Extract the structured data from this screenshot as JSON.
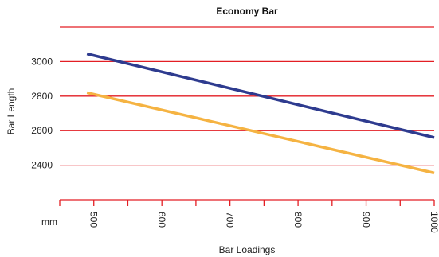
{
  "chart_data": {
    "type": "line",
    "title": "Economy Bar",
    "xlabel": "Bar Loadings",
    "ylabel": "Bar Length",
    "x_unit": "mm",
    "xlim": [
      450,
      1000
    ],
    "ylim": [
      2200,
      3200
    ],
    "x_ticks": [
      "500",
      "600",
      "700",
      "800",
      "900",
      "1000"
    ],
    "y_ticks": [
      "2400",
      "2600",
      "2800",
      "3000"
    ],
    "grid": "horizontal",
    "series": [
      {
        "color": "#2e3b8f",
        "x": [
          490,
          1000
        ],
        "y": [
          3045,
          2560
        ]
      },
      {
        "color": "#f5b342",
        "x": [
          490,
          1000
        ],
        "y": [
          2820,
          2355
        ]
      }
    ]
  },
  "colors": {
    "grid": "#e31e24",
    "axis": "#e31e24"
  }
}
